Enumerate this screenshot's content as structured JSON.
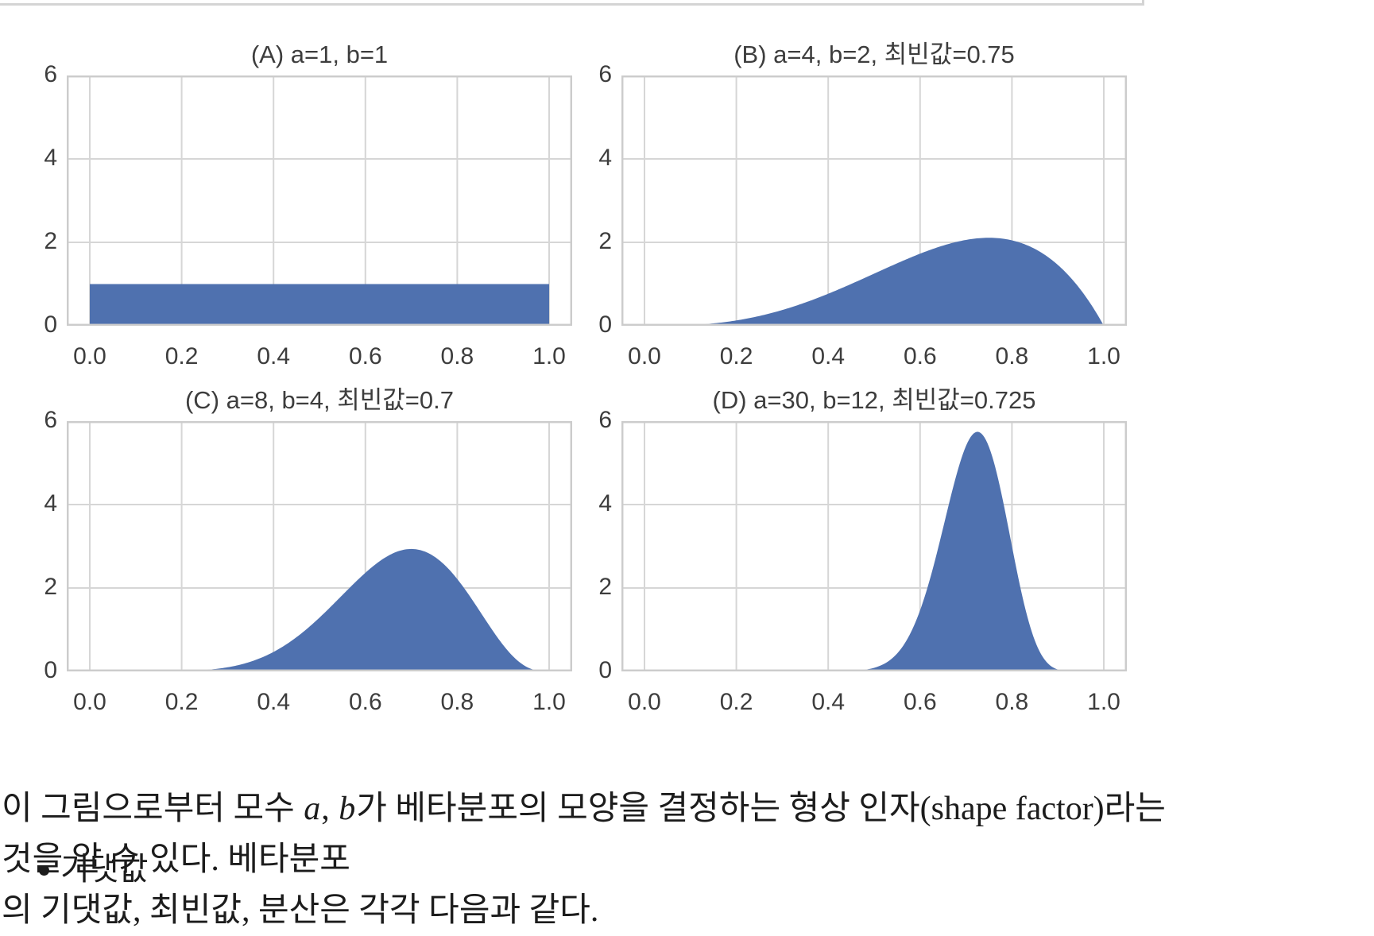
{
  "chart_style": {
    "fill_color": "#4f71af",
    "grid_color": "#d6d6d6",
    "spine_color": "#cccccc",
    "tick_label_color": "#3d3d3d",
    "title_color": "#3d3d3d",
    "background": "#ffffff"
  },
  "cell_box": {
    "border_color": "#d4d4d4"
  },
  "chart_data": [
    {
      "id": "A",
      "type": "area",
      "title": "(A) a=1, b=1",
      "distribution": "beta",
      "params": {
        "a": 1,
        "b": 1
      },
      "mode": null,
      "peak_density": 1.0,
      "xlim": [
        -0.05,
        1.05
      ],
      "ylim": [
        0,
        6
      ],
      "xtick_values": [
        0,
        0.2,
        0.4,
        0.6,
        0.8,
        1.0
      ],
      "xticks": [
        "0.0",
        "0.2",
        "0.4",
        "0.6",
        "0.8",
        "1.0"
      ],
      "ytick_values": [
        0,
        2,
        4,
        6
      ],
      "yticks": [
        "0",
        "2",
        "4",
        "6"
      ],
      "grid": true
    },
    {
      "id": "B",
      "type": "area",
      "title": "(B) a=4, b=2, 최빈값=0.75",
      "distribution": "beta",
      "params": {
        "a": 4,
        "b": 2
      },
      "mode": 0.75,
      "peak_density": 2.11,
      "xlim": [
        -0.05,
        1.05
      ],
      "ylim": [
        0,
        6
      ],
      "xtick_values": [
        0,
        0.2,
        0.4,
        0.6,
        0.8,
        1.0
      ],
      "xticks": [
        "0.0",
        "0.2",
        "0.4",
        "0.6",
        "0.8",
        "1.0"
      ],
      "ytick_values": [
        0,
        2,
        4,
        6
      ],
      "yticks": [
        "0",
        "2",
        "4",
        "6"
      ],
      "grid": true
    },
    {
      "id": "C",
      "type": "area",
      "title": "(C) a=8, b=4, 최빈값=0.7",
      "distribution": "beta",
      "params": {
        "a": 8,
        "b": 4
      },
      "mode": 0.7,
      "peak_density": 2.94,
      "xlim": [
        -0.05,
        1.05
      ],
      "ylim": [
        0,
        6
      ],
      "xtick_values": [
        0,
        0.2,
        0.4,
        0.6,
        0.8,
        1.0
      ],
      "xticks": [
        "0.0",
        "0.2",
        "0.4",
        "0.6",
        "0.8",
        "1.0"
      ],
      "ytick_values": [
        0,
        2,
        4,
        6
      ],
      "yticks": [
        "0",
        "2",
        "4",
        "6"
      ],
      "grid": true
    },
    {
      "id": "D",
      "type": "area",
      "title": "(D) a=30, b=12, 최빈값=0.725",
      "distribution": "beta",
      "params": {
        "a": 30,
        "b": 12
      },
      "mode": 0.725,
      "peak_density": 5.75,
      "xlim": [
        -0.05,
        1.05
      ],
      "ylim": [
        0,
        6
      ],
      "xtick_values": [
        0,
        0.2,
        0.4,
        0.6,
        0.8,
        1.0
      ],
      "xticks": [
        "0.0",
        "0.2",
        "0.4",
        "0.6",
        "0.8",
        "1.0"
      ],
      "ytick_values": [
        0,
        2,
        4,
        6
      ],
      "yticks": [
        "0",
        "2",
        "4",
        "6"
      ],
      "grid": true
    }
  ],
  "paragraph": {
    "s0": "이 그림으로부터 모수 ",
    "s1": "a",
    "s2": ", ",
    "s3": "b",
    "s4": "가 베타분포의 모양을 결정하는 형상 인자(shape factor)라는 것을 알 수 있다. 베타분포",
    "line2": "의 기댓값, 최빈값, 분산은 각각 다음과 같다."
  },
  "bullet": {
    "label": "기댓값"
  }
}
